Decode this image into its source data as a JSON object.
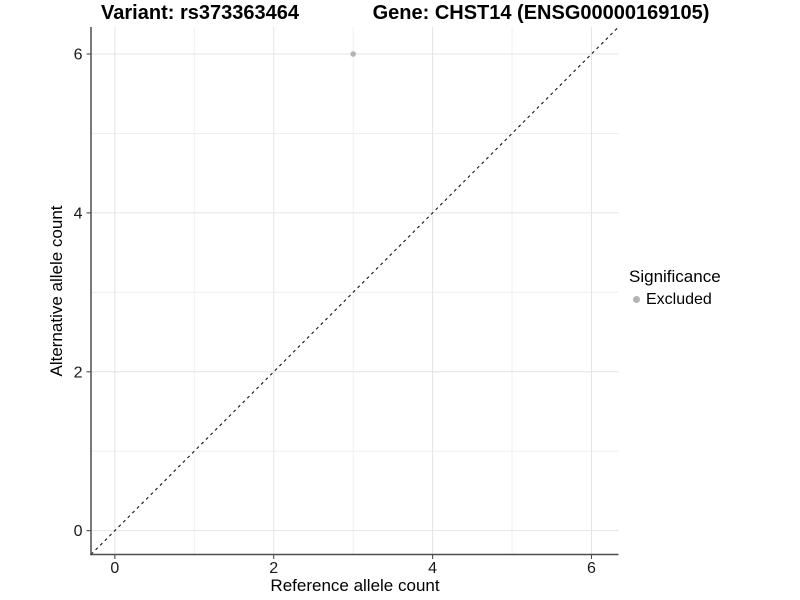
{
  "header": {
    "variant_title": "Variant: rs373363464",
    "gene_title": "Gene: CHST14 (ENSG00000169105)"
  },
  "axes": {
    "x_label": "Reference allele count",
    "y_label": "Alternative allele count"
  },
  "legend": {
    "title": "Significance",
    "items": [
      {
        "label": "Excluded",
        "color": "#b4b4b4"
      }
    ]
  },
  "colors": {
    "point": "#b4b4b4",
    "grid_major": "#e4e4e4",
    "grid_minor": "#efefef",
    "axis_line": "#4d4d4d",
    "tick_text": "#1a1a1a",
    "identity_line": "#111111",
    "background": "#ffffff"
  },
  "chart_data": {
    "type": "scatter",
    "title": "Variant: rs373363464 | Gene: CHST14 (ENSG00000169105)",
    "xlabel": "Reference allele count",
    "ylabel": "Alternative allele count",
    "xlim": [
      -0.3,
      6.34
    ],
    "ylim": [
      -0.3,
      6.34
    ],
    "x_major_ticks": [
      0,
      2,
      4,
      6
    ],
    "x_minor_ticks": [
      1,
      3,
      5
    ],
    "x_tick_labels": [
      "0",
      "2",
      "4",
      "6"
    ],
    "y_major_ticks": [
      0,
      2,
      4,
      6
    ],
    "y_minor_ticks": [
      1,
      3,
      5
    ],
    "y_tick_labels": [
      "0",
      "2",
      "4",
      "6"
    ],
    "grid": "major and minor gridlines, light gray on white",
    "legend_position": "right",
    "legend_title": "Significance",
    "series": [
      {
        "name": "Excluded",
        "color": "#b4b4b4",
        "marker": "circle",
        "points": [
          {
            "x": 3,
            "y": 6
          }
        ]
      }
    ],
    "reference_line": {
      "type": "identity y=x",
      "style": "dashed",
      "color": "#111111"
    }
  }
}
